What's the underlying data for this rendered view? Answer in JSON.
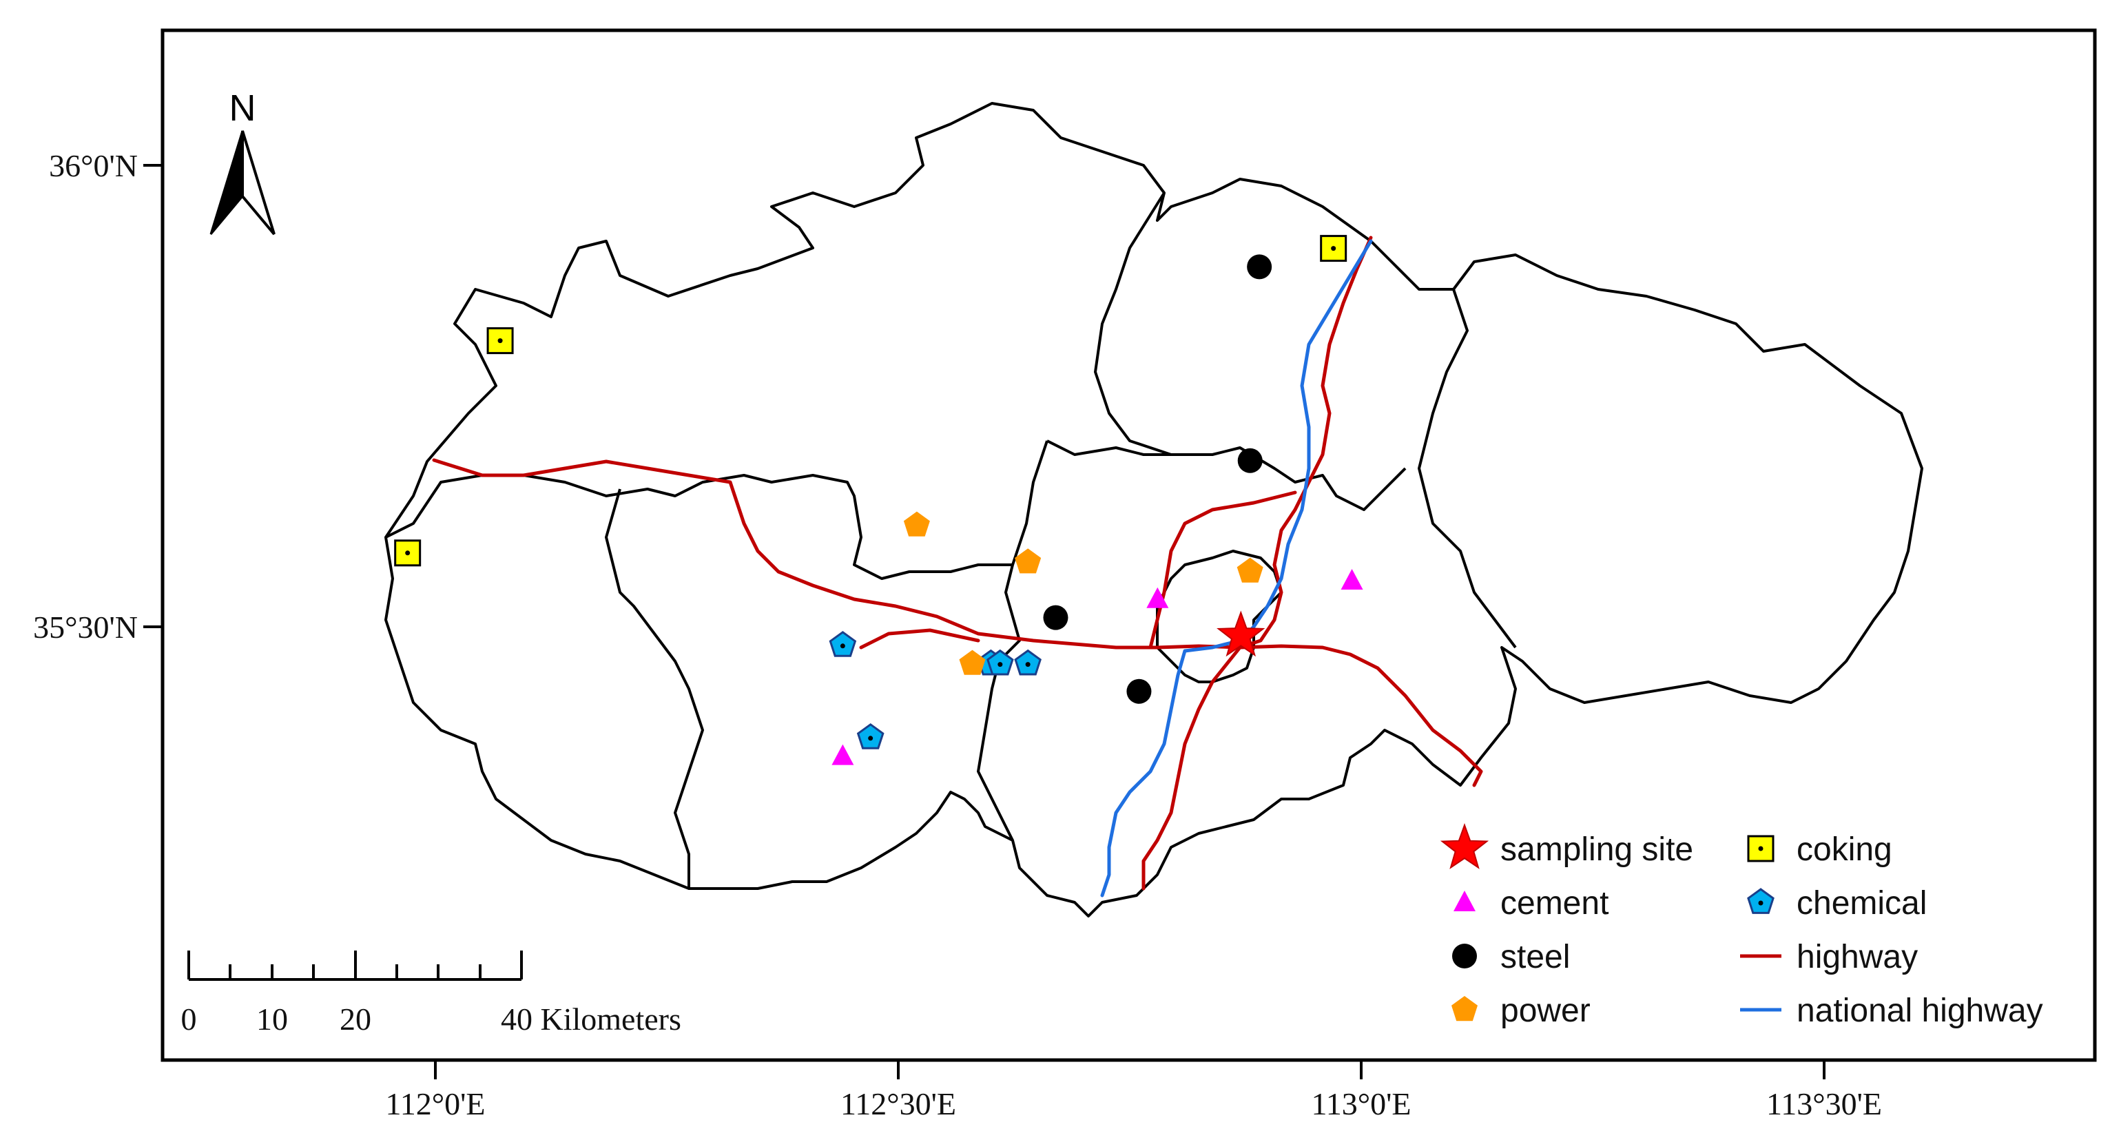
{
  "map": {
    "axes": {
      "y_ticks": [
        {
          "label": "36°0'N",
          "lat": 36.0
        },
        {
          "label": "35°30'N",
          "lat": 35.5
        }
      ],
      "x_ticks": [
        {
          "label": "112°0'E",
          "lon": 112.0
        },
        {
          "label": "112°30'E",
          "lon": 112.5
        },
        {
          "label": "113°0'E",
          "lon": 113.0
        },
        {
          "label": "113°30'E",
          "lon": 113.5
        }
      ]
    },
    "north_arrow": {
      "label": "N",
      "icon": "north-arrow-icon"
    },
    "scale_bar": {
      "labels": [
        "0",
        "10",
        "20",
        "40 Kilometers"
      ]
    },
    "legend": [
      {
        "label": "sampling site",
        "symbol": "star",
        "color": "#ff0000"
      },
      {
        "label": "coking",
        "symbol": "square-dot",
        "color": "#ffff00"
      },
      {
        "label": "cement",
        "symbol": "triangle",
        "color": "#ff00ff"
      },
      {
        "label": "chemical",
        "symbol": "pentagon-dot",
        "color": "#00b0f0"
      },
      {
        "label": "steel",
        "symbol": "circle",
        "color": "#000000"
      },
      {
        "label": "highway",
        "symbol": "line",
        "color": "#c00000"
      },
      {
        "label": "power",
        "symbol": "pentagon",
        "color": "#ff9900"
      },
      {
        "label": "national highway",
        "symbol": "line",
        "color": "#1f6fe0"
      }
    ],
    "features": {
      "sampling_site": [
        {
          "lon": 112.87,
          "lat": 35.49
        }
      ],
      "coking": [
        {
          "lon": 112.07,
          "lat": 35.81
        },
        {
          "lon": 111.97,
          "lat": 35.58
        },
        {
          "lon": 112.97,
          "lat": 35.91
        }
      ],
      "cement": [
        {
          "lon": 112.44,
          "lat": 35.36
        },
        {
          "lon": 112.78,
          "lat": 35.53
        },
        {
          "lon": 112.99,
          "lat": 35.55
        }
      ],
      "chemical": [
        {
          "lon": 112.44,
          "lat": 35.48
        },
        {
          "lon": 112.47,
          "lat": 35.38
        },
        {
          "lon": 112.6,
          "lat": 35.46
        },
        {
          "lon": 112.61,
          "lat": 35.46
        },
        {
          "lon": 112.64,
          "lat": 35.46
        }
      ],
      "steel": [
        {
          "lon": 112.89,
          "lat": 35.89
        },
        {
          "lon": 112.88,
          "lat": 35.68
        },
        {
          "lon": 112.67,
          "lat": 35.51
        },
        {
          "lon": 112.76,
          "lat": 35.43
        }
      ],
      "power": [
        {
          "lon": 112.52,
          "lat": 35.61
        },
        {
          "lon": 112.64,
          "lat": 35.57
        },
        {
          "lon": 112.88,
          "lat": 35.56
        },
        {
          "lon": 112.58,
          "lat": 35.46
        }
      ]
    },
    "colors": {
      "boundary": "#000000",
      "highway": "#c00000",
      "national_highway": "#1f6fe0"
    }
  }
}
